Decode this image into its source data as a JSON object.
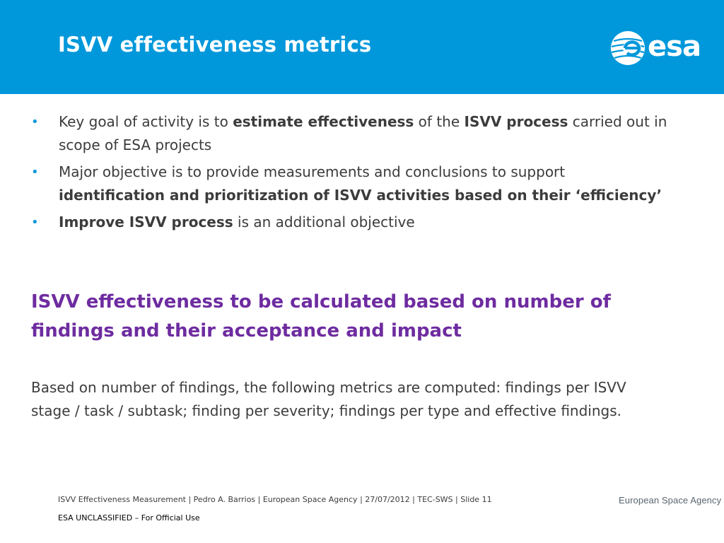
{
  "header": {
    "title": "ISVV effectiveness metrics",
    "logo_text": "esa",
    "logo_icon": "esa-globe-icon"
  },
  "bullets": [
    {
      "parts": [
        {
          "text": "Key goal of activity is to ",
          "bold": false
        },
        {
          "text": "estimate effectiveness",
          "bold": true
        },
        {
          "text": " of the ",
          "bold": false
        },
        {
          "text": "ISVV process",
          "bold": true
        },
        {
          "text": " carried out in scope of ESA projects",
          "bold": false
        }
      ]
    },
    {
      "parts": [
        {
          "text": "Major objective is to provide measurements and conclusions to support ",
          "bold": false
        },
        {
          "text": "identification and prioritization of ISVV activities based on their ‘efficiency’",
          "bold": true
        }
      ]
    },
    {
      "parts": [
        {
          "text": "Improve ISVV process",
          "bold": true
        },
        {
          "text": " is an additional objective",
          "bold": false
        }
      ]
    }
  ],
  "highlight": "ISVV effectiveness to be calculated based on number of findings and their acceptance and impact",
  "paragraph": "Based on number of findings, the following metrics are computed: findings per ISVV stage / task / subtask; finding per severity; findings per type and effective findings.",
  "footer": {
    "text": "ISVV Effectiveness Measurement | Pedro A. Barrios | European Space Agency | 27/07/2012 | TEC-SWS | Slide  11",
    "agency": "European Space Agency",
    "classification": "ESA UNCLASSIFIED – For Official Use"
  },
  "colors": {
    "header_bg": "#0098db",
    "highlight": "#6e2ca0",
    "bullet_dot": "#0098db"
  }
}
